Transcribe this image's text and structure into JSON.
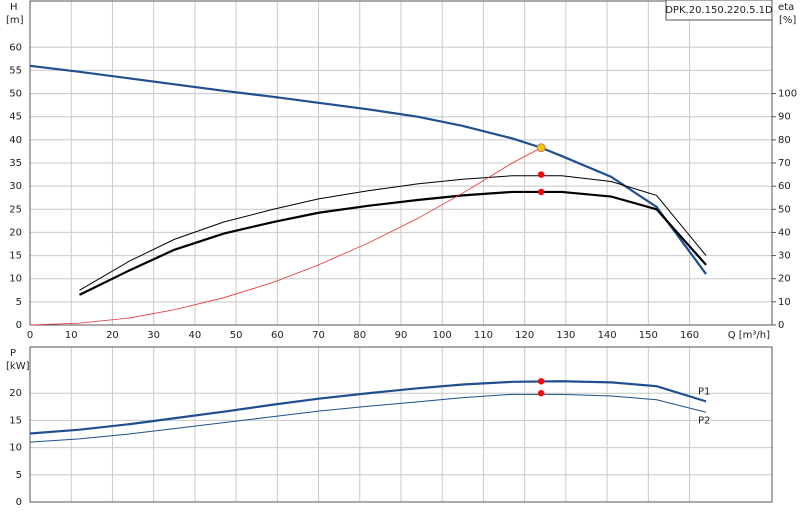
{
  "chart_data": [
    {
      "type": "line",
      "annotation": "DPK.20.150.220.5.1D",
      "ylabel": "H",
      "yunit": "[m]",
      "y2label": "eta",
      "y2unit": "[%]",
      "xlabel": "Q [m³/h]",
      "xlim": [
        0,
        180
      ],
      "xticks": [
        0,
        10,
        20,
        30,
        40,
        50,
        60,
        70,
        80,
        90,
        100,
        110,
        120,
        130,
        140,
        150,
        160
      ],
      "ylim": [
        0,
        70
      ],
      "yticks": [
        0,
        5,
        10,
        15,
        20,
        25,
        30,
        35,
        40,
        45,
        50,
        55,
        60
      ],
      "y2lim": [
        0,
        140
      ],
      "y2ticks": [
        0,
        10,
        20,
        30,
        40,
        50,
        60,
        70,
        80,
        90,
        100
      ],
      "grid": true,
      "series": [
        {
          "color": "#1f4f8f",
          "width": 2.2,
          "x": [
            0,
            12,
            24,
            35,
            47,
            59,
            70,
            82,
            94,
            105,
            117,
            124,
            129,
            141,
            152,
            164
          ],
          "values": [
            56,
            54.7,
            53.3,
            52,
            50.6,
            49.3,
            48,
            46.6,
            45,
            43,
            40.3,
            38.3,
            36.5,
            32,
            25.5,
            11
          ]
        },
        {
          "color": "#000000",
          "width": 1,
          "axis": "y2",
          "x": [
            12,
            24,
            35,
            47,
            59,
            70,
            82,
            94,
            105,
            117,
            129,
            141,
            152,
            164
          ],
          "values": [
            15,
            27.5,
            37,
            44.5,
            50,
            54.5,
            58,
            61,
            63,
            64.5,
            64.5,
            62,
            56,
            30
          ]
        },
        {
          "color": "#000000",
          "width": 2.2,
          "axis": "y2",
          "x": [
            12,
            24,
            35,
            47,
            59,
            70,
            82,
            94,
            105,
            117,
            129,
            141,
            152,
            164
          ],
          "values": [
            13,
            23.5,
            32.5,
            39.5,
            44.5,
            48.5,
            51.5,
            54,
            56,
            57.5,
            57.5,
            55.5,
            50,
            26
          ]
        },
        {
          "color": "#e83030",
          "width": 0.8,
          "x": [
            0,
            12,
            24,
            35,
            47,
            59,
            70,
            82,
            94,
            105,
            117,
            124
          ],
          "values": [
            0,
            0.4,
            1.5,
            3.3,
            5.9,
            9.2,
            13,
            17.7,
            23,
            28.5,
            35,
            38.3
          ]
        }
      ],
      "points": [
        {
          "x": 124,
          "y": 38.3,
          "color": "#f5c400"
        },
        {
          "x": 124,
          "y": 65,
          "axis": "y2",
          "color": "#ff0000"
        },
        {
          "x": 124,
          "y": 57.5,
          "axis": "y2",
          "color": "#ff0000"
        }
      ]
    },
    {
      "type": "line",
      "ylabel": "P",
      "yunit": "[kW]",
      "xlim": [
        0,
        180
      ],
      "xticks": [
        0,
        10,
        20,
        30,
        40,
        50,
        60,
        70,
        80,
        90,
        100,
        110,
        120,
        130,
        140,
        150,
        160
      ],
      "ylim": [
        0,
        28.5
      ],
      "yticks": [
        0,
        5,
        10,
        15,
        20
      ],
      "grid": true,
      "series": [
        {
          "name": "P1",
          "color": "#1f4f8f",
          "width": 2.2,
          "x": [
            0,
            12,
            24,
            35,
            47,
            59,
            70,
            82,
            94,
            105,
            117,
            129,
            141,
            152,
            164
          ],
          "values": [
            12.6,
            13.3,
            14.3,
            15.4,
            16.6,
            17.9,
            19,
            20,
            20.9,
            21.6,
            22.1,
            22.2,
            22,
            21.3,
            18.5
          ]
        },
        {
          "name": "P2",
          "color": "#1f4f8f",
          "width": 1,
          "x": [
            0,
            12,
            24,
            35,
            47,
            59,
            70,
            82,
            94,
            105,
            117,
            129,
            141,
            152,
            164
          ],
          "values": [
            11,
            11.6,
            12.5,
            13.5,
            14.6,
            15.7,
            16.7,
            17.6,
            18.4,
            19.2,
            19.8,
            19.8,
            19.5,
            18.8,
            16.5
          ]
        }
      ],
      "points": [
        {
          "x": 124,
          "y": 22.2,
          "color": "#ff0000"
        },
        {
          "x": 124,
          "y": 20,
          "color": "#ff0000"
        }
      ]
    }
  ]
}
